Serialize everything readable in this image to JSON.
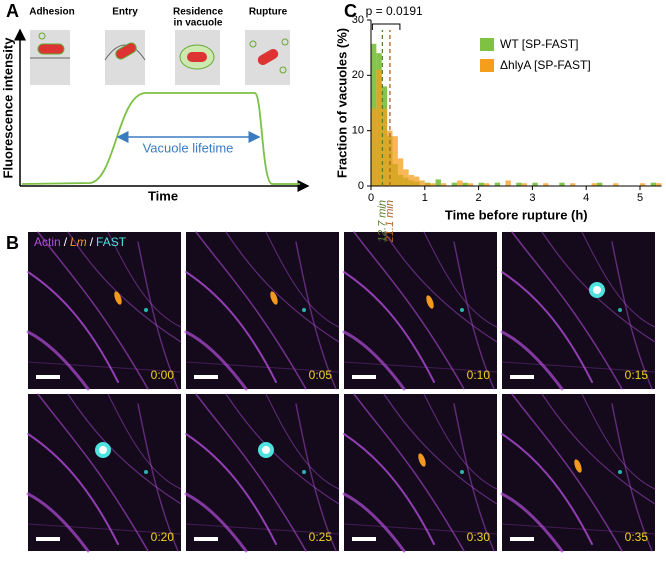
{
  "panels": {
    "A": {
      "label": "A",
      "stages": [
        [
          "Adhesion"
        ],
        [
          "Entry"
        ],
        [
          "Residence",
          "in vacuole"
        ],
        [
          "Rupture"
        ]
      ],
      "ylabel": "Fluorescence intensity",
      "xlabel": "Time",
      "annotation": "Vacuole lifetime"
    },
    "B": {
      "label": "B",
      "legend": [
        "Actin",
        "/",
        "Lm",
        "/",
        "FAST"
      ],
      "frames": [
        "0:00",
        "0:05",
        "0:10",
        "0:15",
        "0:20",
        "0:25",
        "0:30",
        "0:35"
      ]
    },
    "C": {
      "label": "C"
    }
  },
  "chart_data": {
    "type": "histogram",
    "xlabel": "Time before rupture (h)",
    "ylabel": "Fraction of vacuoles (%)",
    "annotation": "p = 0.0191",
    "bins": [
      0,
      0.1,
      0.2,
      0.3,
      0.4,
      0.5,
      0.6,
      0.7,
      0.8,
      0.9,
      1,
      1.1,
      1.2,
      1.3,
      1.4,
      1.5,
      1.6,
      1.7,
      1.8,
      1.9,
      2,
      2.1,
      2.2,
      2.3,
      2.4,
      2.5,
      2.6,
      2.7,
      2.8,
      2.9,
      3,
      3.1,
      3.2,
      3.3,
      3.4,
      3.5,
      3.6,
      3.7,
      3.8,
      3.9,
      4,
      4.1,
      4.2,
      4.3,
      4.4,
      4.5,
      4.6,
      4.7,
      4.8,
      4.9,
      5,
      5.1,
      5.2,
      5.3,
      5.4
    ],
    "series": [
      {
        "name": "WT [SP-FAST]",
        "color": "#7fc241",
        "values": [
          25.7,
          24,
          18,
          9,
          4,
          2,
          1.5,
          1,
          0.8,
          0,
          0.6,
          0,
          1.2,
          0,
          0,
          0.6,
          0,
          0.6,
          0,
          0,
          0.6,
          0,
          0,
          0.6,
          0,
          0,
          0,
          0.6,
          0,
          0,
          0.6,
          0,
          0,
          0,
          0,
          0.6,
          0,
          0,
          0,
          0,
          0,
          0,
          0.6,
          0,
          0,
          0,
          0,
          0,
          0,
          0,
          0,
          0,
          0.6,
          0
        ]
      },
      {
        "name": "ΔhlyA [SP-FAST]",
        "color": "#f59e1b",
        "values": [
          14,
          21,
          14,
          10,
          9,
          5,
          3,
          2,
          1.7,
          1,
          0.5,
          0.5,
          0,
          0.5,
          0,
          0,
          1,
          0,
          0.5,
          0,
          0,
          0.5,
          0,
          0,
          0,
          1,
          0,
          0,
          0.5,
          0,
          0,
          0,
          0.5,
          0,
          0,
          0,
          0,
          0.5,
          0,
          0,
          0,
          0.5,
          0,
          0,
          0,
          0.5,
          0,
          0,
          0,
          0,
          0.5,
          0,
          0,
          0.5
        ]
      }
    ],
    "medians": [
      {
        "value": 0.2117,
        "label": "12.7 min",
        "color": "#5b7e2a"
      },
      {
        "value": 0.3517,
        "label": "21.1 min",
        "color": "#b0611a"
      }
    ],
    "xlim": [
      0,
      5.4
    ],
    "xticks": [
      0,
      1,
      2,
      3,
      4,
      5
    ],
    "ylim": [
      0,
      30
    ],
    "yticks": [
      0,
      10,
      20,
      30
    ],
    "legend": "upper right"
  }
}
